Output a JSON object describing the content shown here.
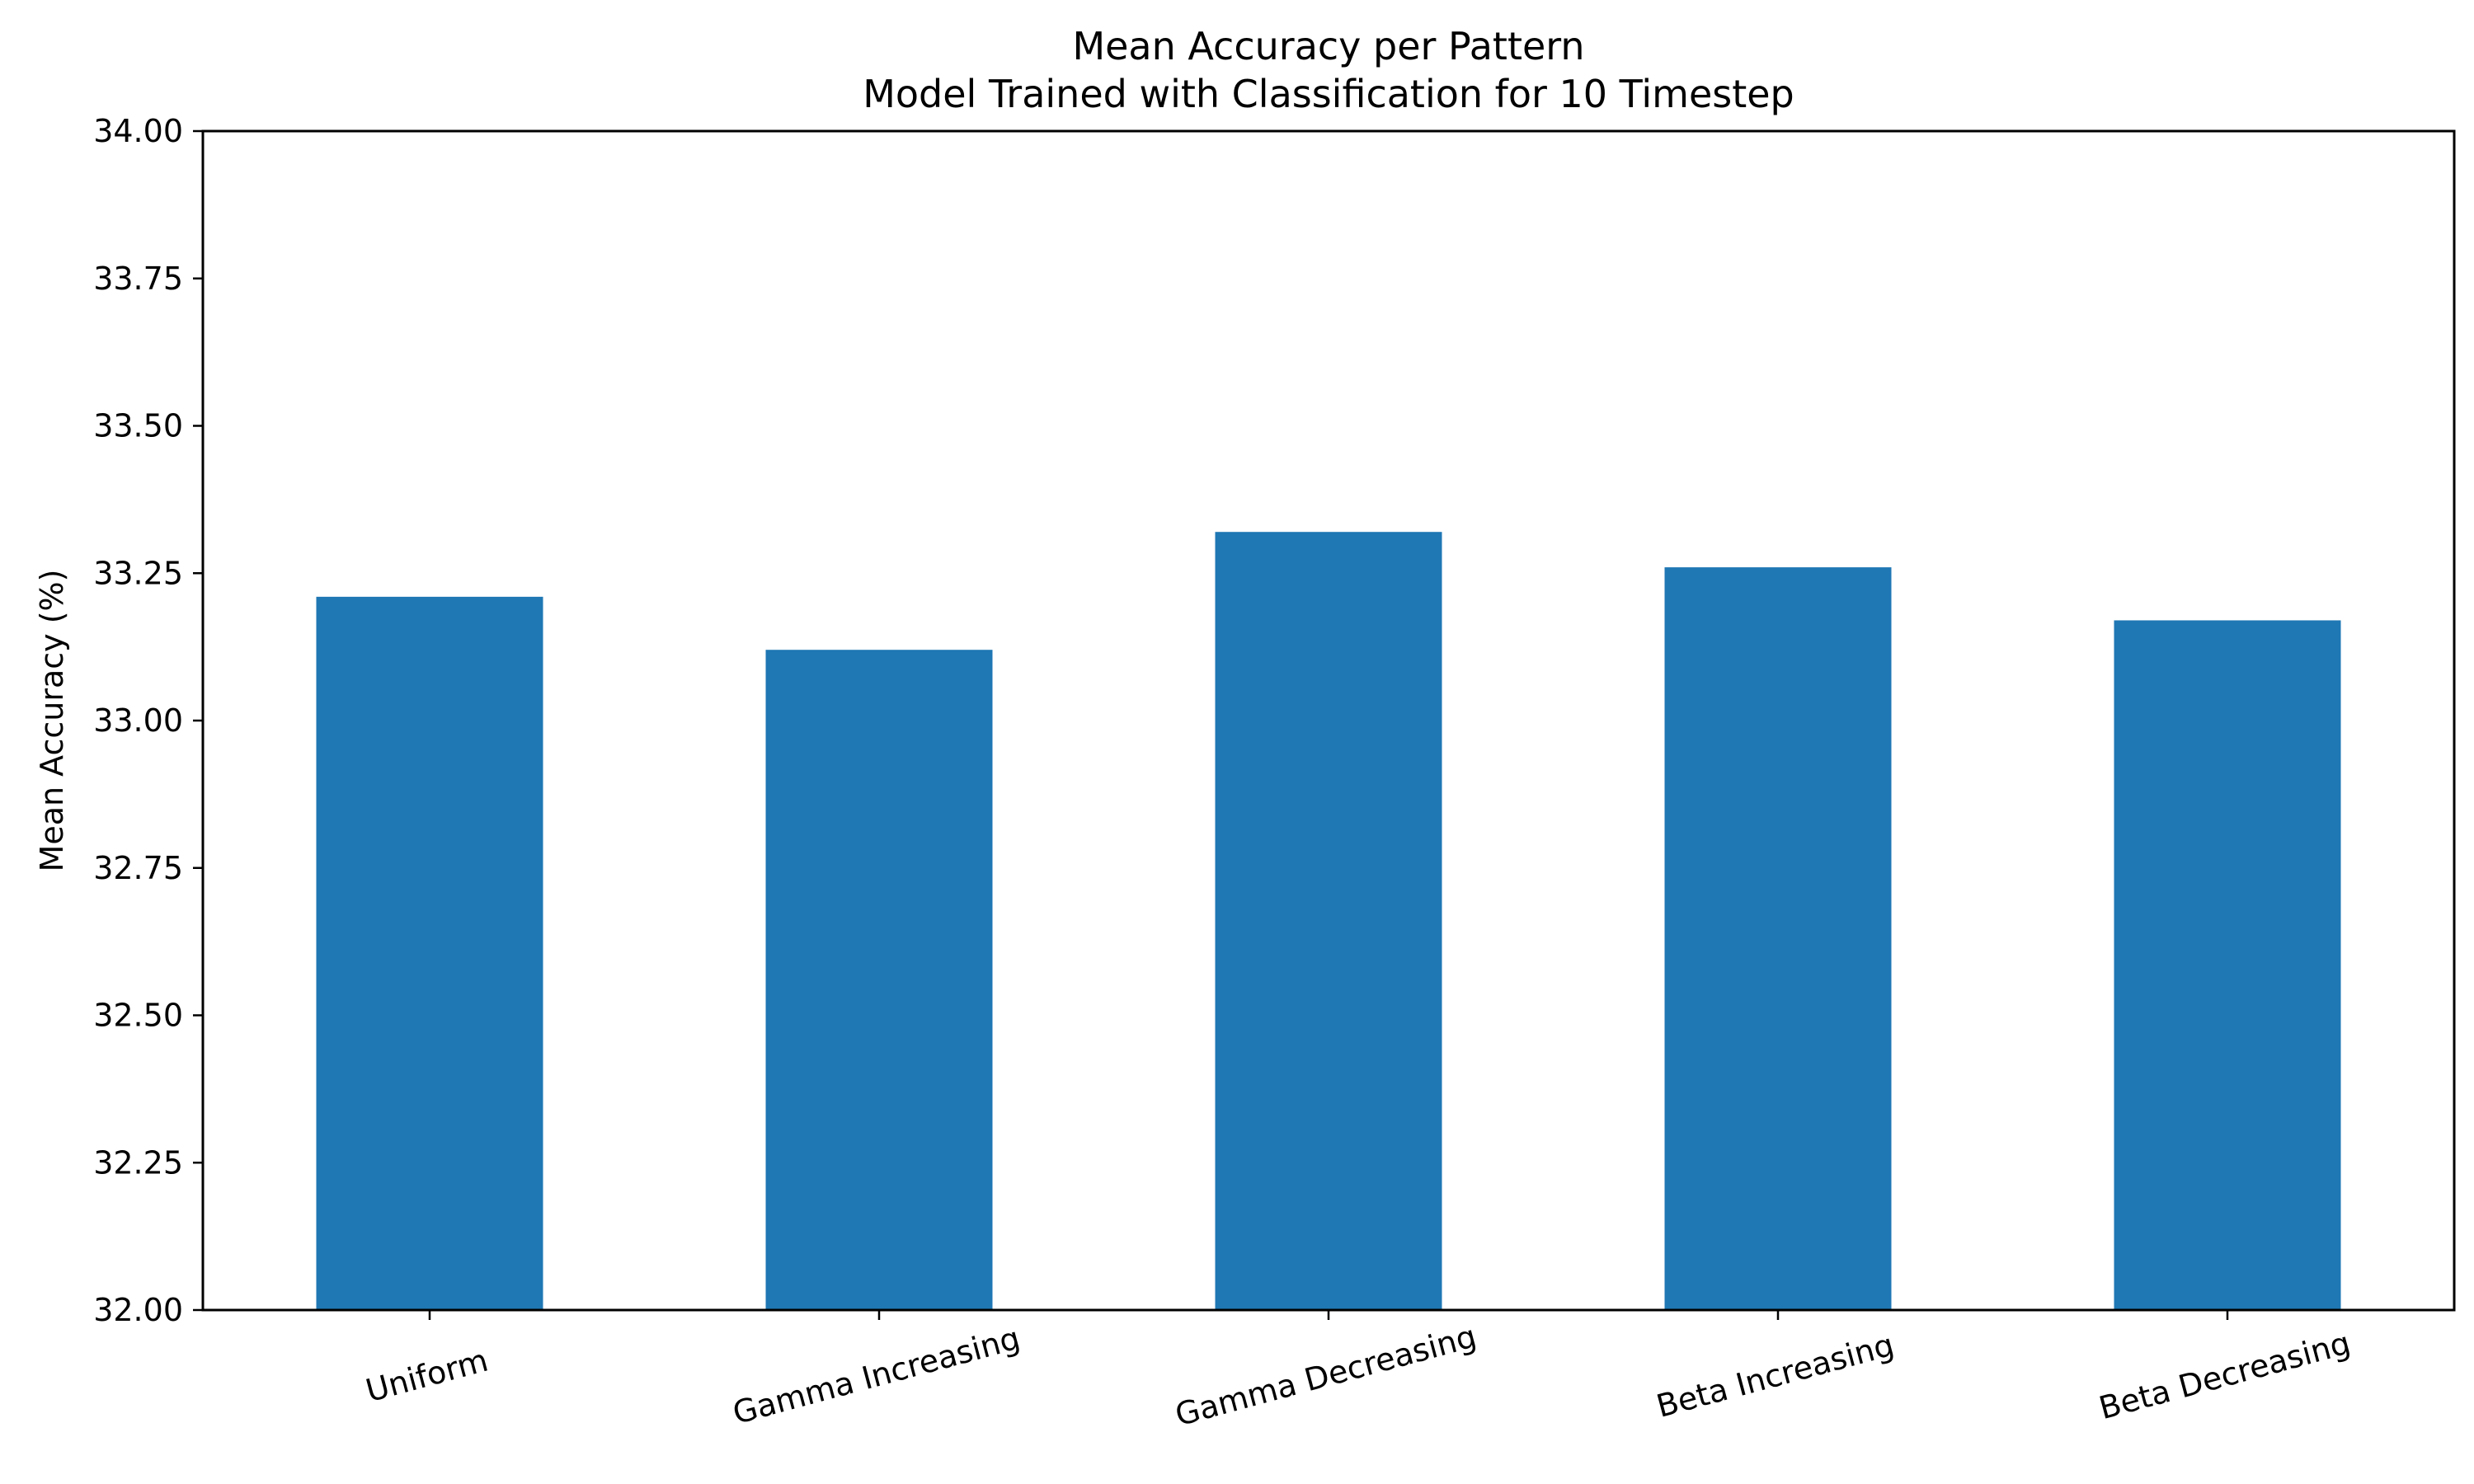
{
  "chart_data": {
    "type": "bar",
    "title": "Mean Accuracy per Pattern",
    "subtitle": "Model Trained with Classification for 10 Timestep",
    "xlabel": "",
    "ylabel": "Mean Accuracy (%)",
    "categories": [
      "Uniform",
      "Gamma Increasing",
      "Gamma Decreasing",
      "Beta Increasing",
      "Beta Decreasing"
    ],
    "values": [
      33.21,
      33.12,
      33.32,
      33.26,
      33.17
    ],
    "ylim": [
      32.0,
      34.0
    ],
    "yticks": [
      "32.00",
      "32.25",
      "32.50",
      "32.75",
      "33.00",
      "33.25",
      "33.50",
      "33.75",
      "34.00"
    ],
    "bar_color": "#1f77b4",
    "grid": false,
    "legend": "none"
  }
}
